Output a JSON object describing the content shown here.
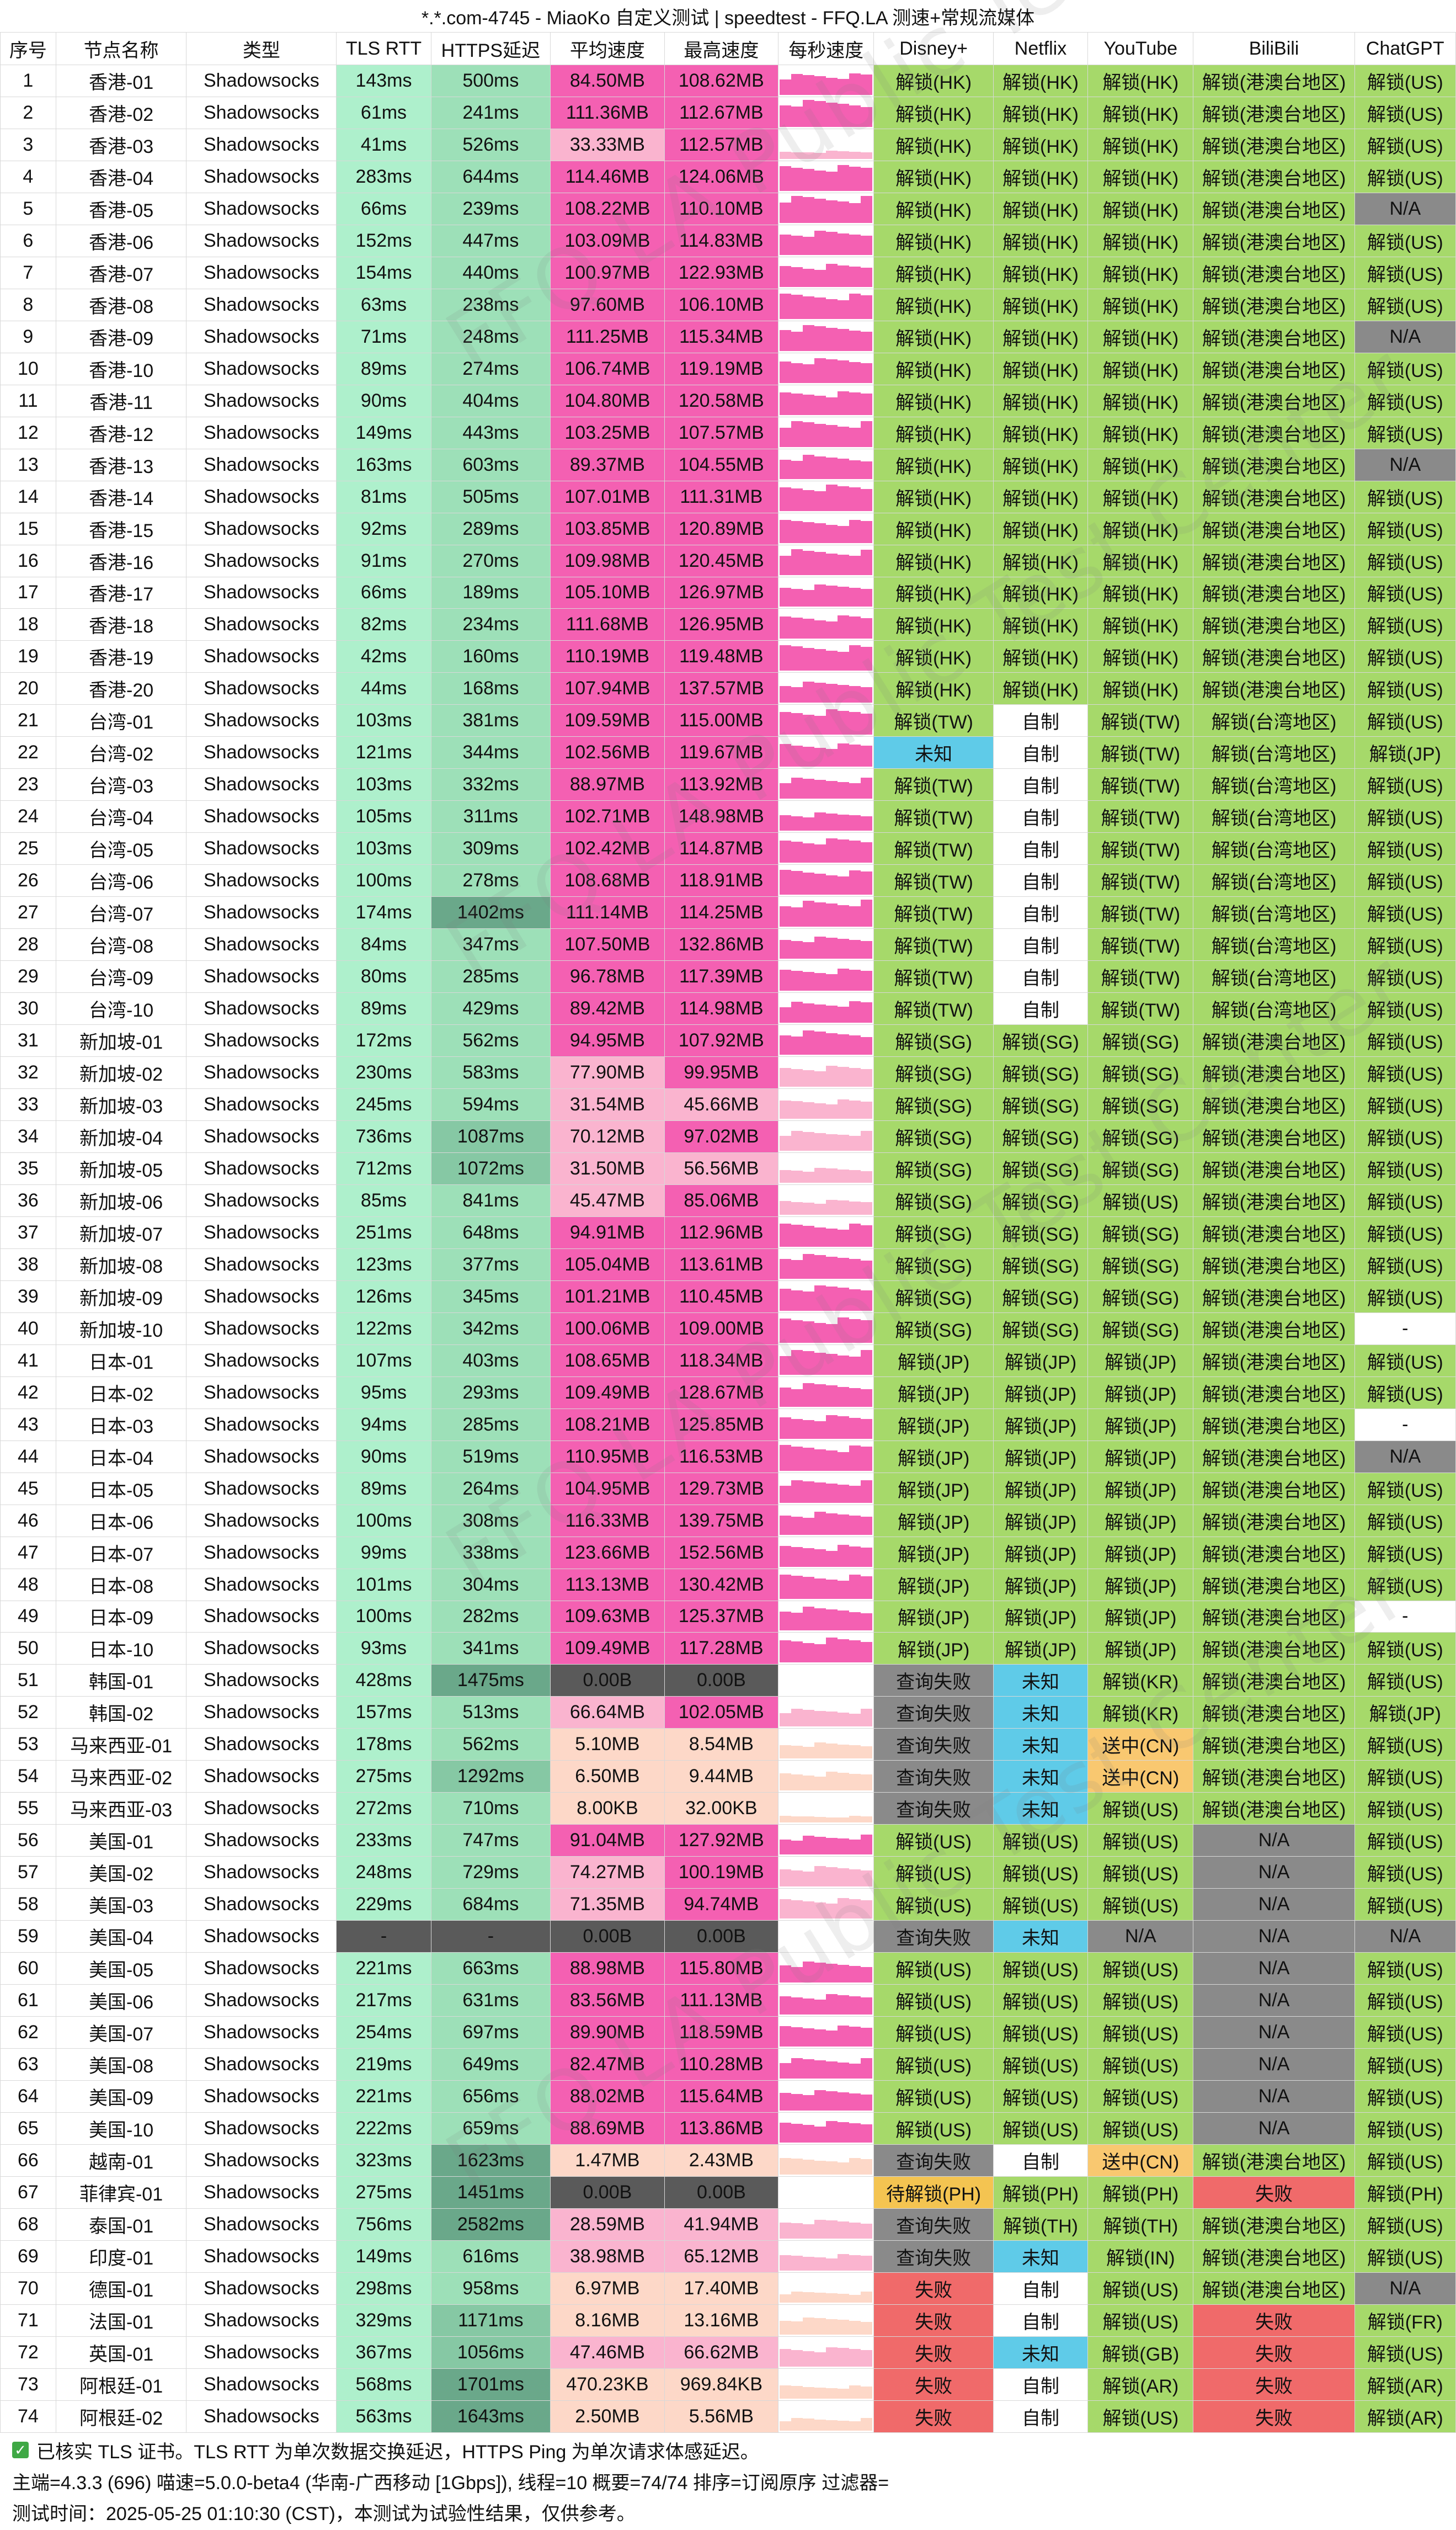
{
  "title": "*.*.com-4745 - MiaoKo 自定义测试 | speedtest - FFQ.LA 测速+常规流媒体",
  "columns": [
    "序号",
    "节点名称",
    "类型",
    "TLS RTT",
    "HTTPS延迟",
    "平均速度",
    "最高速度",
    "每秒速度",
    "Disney+",
    "Netflix",
    "YouTube",
    "BiliBili",
    "ChatGPT"
  ],
  "rows": [
    [
      "1",
      "香港-01",
      "Shadowsocks",
      "143ms",
      "500ms",
      "84.50MB",
      "108.62MB",
      "",
      "解锁(HK)",
      "解锁(HK)",
      "解锁(HK)",
      "解锁(港澳台地区)",
      "解锁(US)"
    ],
    [
      "2",
      "香港-02",
      "Shadowsocks",
      "61ms",
      "241ms",
      "111.36MB",
      "112.67MB",
      "",
      "解锁(HK)",
      "解锁(HK)",
      "解锁(HK)",
      "解锁(港澳台地区)",
      "解锁(US)"
    ],
    [
      "3",
      "香港-03",
      "Shadowsocks",
      "41ms",
      "526ms",
      "33.33MB",
      "112.57MB",
      "",
      "解锁(HK)",
      "解锁(HK)",
      "解锁(HK)",
      "解锁(港澳台地区)",
      "解锁(US)"
    ],
    [
      "4",
      "香港-04",
      "Shadowsocks",
      "283ms",
      "644ms",
      "114.46MB",
      "124.06MB",
      "",
      "解锁(HK)",
      "解锁(HK)",
      "解锁(HK)",
      "解锁(港澳台地区)",
      "解锁(US)"
    ],
    [
      "5",
      "香港-05",
      "Shadowsocks",
      "66ms",
      "239ms",
      "108.22MB",
      "110.10MB",
      "",
      "解锁(HK)",
      "解锁(HK)",
      "解锁(HK)",
      "解锁(港澳台地区)",
      "N/A"
    ],
    [
      "6",
      "香港-06",
      "Shadowsocks",
      "152ms",
      "447ms",
      "103.09MB",
      "114.83MB",
      "",
      "解锁(HK)",
      "解锁(HK)",
      "解锁(HK)",
      "解锁(港澳台地区)",
      "解锁(US)"
    ],
    [
      "7",
      "香港-07",
      "Shadowsocks",
      "154ms",
      "440ms",
      "100.97MB",
      "122.93MB",
      "",
      "解锁(HK)",
      "解锁(HK)",
      "解锁(HK)",
      "解锁(港澳台地区)",
      "解锁(US)"
    ],
    [
      "8",
      "香港-08",
      "Shadowsocks",
      "63ms",
      "238ms",
      "97.60MB",
      "106.10MB",
      "",
      "解锁(HK)",
      "解锁(HK)",
      "解锁(HK)",
      "解锁(港澳台地区)",
      "解锁(US)"
    ],
    [
      "9",
      "香港-09",
      "Shadowsocks",
      "71ms",
      "248ms",
      "111.25MB",
      "115.34MB",
      "",
      "解锁(HK)",
      "解锁(HK)",
      "解锁(HK)",
      "解锁(港澳台地区)",
      "N/A"
    ],
    [
      "10",
      "香港-10",
      "Shadowsocks",
      "89ms",
      "274ms",
      "106.74MB",
      "119.19MB",
      "",
      "解锁(HK)",
      "解锁(HK)",
      "解锁(HK)",
      "解锁(港澳台地区)",
      "解锁(US)"
    ],
    [
      "11",
      "香港-11",
      "Shadowsocks",
      "90ms",
      "404ms",
      "104.80MB",
      "120.58MB",
      "",
      "解锁(HK)",
      "解锁(HK)",
      "解锁(HK)",
      "解锁(港澳台地区)",
      "解锁(US)"
    ],
    [
      "12",
      "香港-12",
      "Shadowsocks",
      "149ms",
      "443ms",
      "103.25MB",
      "107.57MB",
      "",
      "解锁(HK)",
      "解锁(HK)",
      "解锁(HK)",
      "解锁(港澳台地区)",
      "解锁(US)"
    ],
    [
      "13",
      "香港-13",
      "Shadowsocks",
      "163ms",
      "603ms",
      "89.37MB",
      "104.55MB",
      "",
      "解锁(HK)",
      "解锁(HK)",
      "解锁(HK)",
      "解锁(港澳台地区)",
      "N/A"
    ],
    [
      "14",
      "香港-14",
      "Shadowsocks",
      "81ms",
      "505ms",
      "107.01MB",
      "111.31MB",
      "",
      "解锁(HK)",
      "解锁(HK)",
      "解锁(HK)",
      "解锁(港澳台地区)",
      "解锁(US)"
    ],
    [
      "15",
      "香港-15",
      "Shadowsocks",
      "92ms",
      "289ms",
      "103.85MB",
      "120.89MB",
      "",
      "解锁(HK)",
      "解锁(HK)",
      "解锁(HK)",
      "解锁(港澳台地区)",
      "解锁(US)"
    ],
    [
      "16",
      "香港-16",
      "Shadowsocks",
      "91ms",
      "270ms",
      "109.98MB",
      "120.45MB",
      "",
      "解锁(HK)",
      "解锁(HK)",
      "解锁(HK)",
      "解锁(港澳台地区)",
      "解锁(US)"
    ],
    [
      "17",
      "香港-17",
      "Shadowsocks",
      "66ms",
      "189ms",
      "105.10MB",
      "126.97MB",
      "",
      "解锁(HK)",
      "解锁(HK)",
      "解锁(HK)",
      "解锁(港澳台地区)",
      "解锁(US)"
    ],
    [
      "18",
      "香港-18",
      "Shadowsocks",
      "82ms",
      "234ms",
      "111.68MB",
      "126.95MB",
      "",
      "解锁(HK)",
      "解锁(HK)",
      "解锁(HK)",
      "解锁(港澳台地区)",
      "解锁(US)"
    ],
    [
      "19",
      "香港-19",
      "Shadowsocks",
      "42ms",
      "160ms",
      "110.19MB",
      "119.48MB",
      "",
      "解锁(HK)",
      "解锁(HK)",
      "解锁(HK)",
      "解锁(港澳台地区)",
      "解锁(US)"
    ],
    [
      "20",
      "香港-20",
      "Shadowsocks",
      "44ms",
      "168ms",
      "107.94MB",
      "137.57MB",
      "",
      "解锁(HK)",
      "解锁(HK)",
      "解锁(HK)",
      "解锁(港澳台地区)",
      "解锁(US)"
    ],
    [
      "21",
      "台湾-01",
      "Shadowsocks",
      "103ms",
      "381ms",
      "109.59MB",
      "115.00MB",
      "",
      "解锁(TW)",
      "自制",
      "解锁(TW)",
      "解锁(台湾地区)",
      "解锁(US)"
    ],
    [
      "22",
      "台湾-02",
      "Shadowsocks",
      "121ms",
      "344ms",
      "102.56MB",
      "119.67MB",
      "",
      "未知",
      "自制",
      "解锁(TW)",
      "解锁(台湾地区)",
      "解锁(JP)"
    ],
    [
      "23",
      "台湾-03",
      "Shadowsocks",
      "103ms",
      "332ms",
      "88.97MB",
      "113.92MB",
      "",
      "解锁(TW)",
      "自制",
      "解锁(TW)",
      "解锁(台湾地区)",
      "解锁(US)"
    ],
    [
      "24",
      "台湾-04",
      "Shadowsocks",
      "105ms",
      "311ms",
      "102.71MB",
      "148.98MB",
      "",
      "解锁(TW)",
      "自制",
      "解锁(TW)",
      "解锁(台湾地区)",
      "解锁(US)"
    ],
    [
      "25",
      "台湾-05",
      "Shadowsocks",
      "103ms",
      "309ms",
      "102.42MB",
      "114.87MB",
      "",
      "解锁(TW)",
      "自制",
      "解锁(TW)",
      "解锁(台湾地区)",
      "解锁(US)"
    ],
    [
      "26",
      "台湾-06",
      "Shadowsocks",
      "100ms",
      "278ms",
      "108.68MB",
      "118.91MB",
      "",
      "解锁(TW)",
      "自制",
      "解锁(TW)",
      "解锁(台湾地区)",
      "解锁(US)"
    ],
    [
      "27",
      "台湾-07",
      "Shadowsocks",
      "174ms",
      "1402ms",
      "111.14MB",
      "114.25MB",
      "",
      "解锁(TW)",
      "自制",
      "解锁(TW)",
      "解锁(台湾地区)",
      "解锁(US)"
    ],
    [
      "28",
      "台湾-08",
      "Shadowsocks",
      "84ms",
      "347ms",
      "107.50MB",
      "132.86MB",
      "",
      "解锁(TW)",
      "自制",
      "解锁(TW)",
      "解锁(台湾地区)",
      "解锁(US)"
    ],
    [
      "29",
      "台湾-09",
      "Shadowsocks",
      "80ms",
      "285ms",
      "96.78MB",
      "117.39MB",
      "",
      "解锁(TW)",
      "自制",
      "解锁(TW)",
      "解锁(台湾地区)",
      "解锁(US)"
    ],
    [
      "30",
      "台湾-10",
      "Shadowsocks",
      "89ms",
      "429ms",
      "89.42MB",
      "114.98MB",
      "",
      "解锁(TW)",
      "自制",
      "解锁(TW)",
      "解锁(台湾地区)",
      "解锁(US)"
    ],
    [
      "31",
      "新加坡-01",
      "Shadowsocks",
      "172ms",
      "562ms",
      "94.95MB",
      "107.92MB",
      "",
      "解锁(SG)",
      "解锁(SG)",
      "解锁(SG)",
      "解锁(港澳台地区)",
      "解锁(US)"
    ],
    [
      "32",
      "新加坡-02",
      "Shadowsocks",
      "230ms",
      "583ms",
      "77.90MB",
      "99.95MB",
      "",
      "解锁(SG)",
      "解锁(SG)",
      "解锁(SG)",
      "解锁(港澳台地区)",
      "解锁(US)"
    ],
    [
      "33",
      "新加坡-03",
      "Shadowsocks",
      "245ms",
      "594ms",
      "31.54MB",
      "45.66MB",
      "",
      "解锁(SG)",
      "解锁(SG)",
      "解锁(SG)",
      "解锁(港澳台地区)",
      "解锁(US)"
    ],
    [
      "34",
      "新加坡-04",
      "Shadowsocks",
      "736ms",
      "1087ms",
      "70.12MB",
      "97.02MB",
      "",
      "解锁(SG)",
      "解锁(SG)",
      "解锁(SG)",
      "解锁(港澳台地区)",
      "解锁(US)"
    ],
    [
      "35",
      "新加坡-05",
      "Shadowsocks",
      "712ms",
      "1072ms",
      "31.50MB",
      "56.56MB",
      "",
      "解锁(SG)",
      "解锁(SG)",
      "解锁(SG)",
      "解锁(港澳台地区)",
      "解锁(US)"
    ],
    [
      "36",
      "新加坡-06",
      "Shadowsocks",
      "85ms",
      "841ms",
      "45.47MB",
      "85.06MB",
      "",
      "解锁(SG)",
      "解锁(SG)",
      "解锁(US)",
      "解锁(港澳台地区)",
      "解锁(US)"
    ],
    [
      "37",
      "新加坡-07",
      "Shadowsocks",
      "251ms",
      "648ms",
      "94.91MB",
      "112.96MB",
      "",
      "解锁(SG)",
      "解锁(SG)",
      "解锁(SG)",
      "解锁(港澳台地区)",
      "解锁(US)"
    ],
    [
      "38",
      "新加坡-08",
      "Shadowsocks",
      "123ms",
      "377ms",
      "105.04MB",
      "113.61MB",
      "",
      "解锁(SG)",
      "解锁(SG)",
      "解锁(SG)",
      "解锁(港澳台地区)",
      "解锁(US)"
    ],
    [
      "39",
      "新加坡-09",
      "Shadowsocks",
      "126ms",
      "345ms",
      "101.21MB",
      "110.45MB",
      "",
      "解锁(SG)",
      "解锁(SG)",
      "解锁(SG)",
      "解锁(港澳台地区)",
      "解锁(US)"
    ],
    [
      "40",
      "新加坡-10",
      "Shadowsocks",
      "122ms",
      "342ms",
      "100.06MB",
      "109.00MB",
      "",
      "解锁(SG)",
      "解锁(SG)",
      "解锁(SG)",
      "解锁(港澳台地区)",
      "-"
    ],
    [
      "41",
      "日本-01",
      "Shadowsocks",
      "107ms",
      "403ms",
      "108.65MB",
      "118.34MB",
      "",
      "解锁(JP)",
      "解锁(JP)",
      "解锁(JP)",
      "解锁(港澳台地区)",
      "解锁(US)"
    ],
    [
      "42",
      "日本-02",
      "Shadowsocks",
      "95ms",
      "293ms",
      "109.49MB",
      "128.67MB",
      "",
      "解锁(JP)",
      "解锁(JP)",
      "解锁(JP)",
      "解锁(港澳台地区)",
      "解锁(US)"
    ],
    [
      "43",
      "日本-03",
      "Shadowsocks",
      "94ms",
      "285ms",
      "108.21MB",
      "125.85MB",
      "",
      "解锁(JP)",
      "解锁(JP)",
      "解锁(JP)",
      "解锁(港澳台地区)",
      "-"
    ],
    [
      "44",
      "日本-04",
      "Shadowsocks",
      "90ms",
      "519ms",
      "110.95MB",
      "116.53MB",
      "",
      "解锁(JP)",
      "解锁(JP)",
      "解锁(JP)",
      "解锁(港澳台地区)",
      "N/A"
    ],
    [
      "45",
      "日本-05",
      "Shadowsocks",
      "89ms",
      "264ms",
      "104.95MB",
      "129.73MB",
      "",
      "解锁(JP)",
      "解锁(JP)",
      "解锁(JP)",
      "解锁(港澳台地区)",
      "解锁(US)"
    ],
    [
      "46",
      "日本-06",
      "Shadowsocks",
      "100ms",
      "308ms",
      "116.33MB",
      "139.75MB",
      "",
      "解锁(JP)",
      "解锁(JP)",
      "解锁(JP)",
      "解锁(港澳台地区)",
      "解锁(US)"
    ],
    [
      "47",
      "日本-07",
      "Shadowsocks",
      "99ms",
      "338ms",
      "123.66MB",
      "152.56MB",
      "",
      "解锁(JP)",
      "解锁(JP)",
      "解锁(JP)",
      "解锁(港澳台地区)",
      "解锁(US)"
    ],
    [
      "48",
      "日本-08",
      "Shadowsocks",
      "101ms",
      "304ms",
      "113.13MB",
      "130.42MB",
      "",
      "解锁(JP)",
      "解锁(JP)",
      "解锁(JP)",
      "解锁(港澳台地区)",
      "解锁(US)"
    ],
    [
      "49",
      "日本-09",
      "Shadowsocks",
      "100ms",
      "282ms",
      "109.63MB",
      "125.37MB",
      "",
      "解锁(JP)",
      "解锁(JP)",
      "解锁(JP)",
      "解锁(港澳台地区)",
      "-"
    ],
    [
      "50",
      "日本-10",
      "Shadowsocks",
      "93ms",
      "341ms",
      "109.49MB",
      "117.28MB",
      "",
      "解锁(JP)",
      "解锁(JP)",
      "解锁(JP)",
      "解锁(港澳台地区)",
      "解锁(US)"
    ],
    [
      "51",
      "韩国-01",
      "Shadowsocks",
      "428ms",
      "1475ms",
      "0.00B",
      "0.00B",
      "",
      "查询失败",
      "未知",
      "解锁(KR)",
      "解锁(港澳台地区)",
      "解锁(US)"
    ],
    [
      "52",
      "韩国-02",
      "Shadowsocks",
      "157ms",
      "513ms",
      "66.64MB",
      "102.05MB",
      "",
      "查询失败",
      "未知",
      "解锁(KR)",
      "解锁(港澳台地区)",
      "解锁(JP)"
    ],
    [
      "53",
      "马来西亚-01",
      "Shadowsocks",
      "178ms",
      "562ms",
      "5.10MB",
      "8.54MB",
      "",
      "查询失败",
      "未知",
      "送中(CN)",
      "解锁(港澳台地区)",
      "解锁(US)"
    ],
    [
      "54",
      "马来西亚-02",
      "Shadowsocks",
      "275ms",
      "1292ms",
      "6.50MB",
      "9.44MB",
      "",
      "查询失败",
      "未知",
      "送中(CN)",
      "解锁(港澳台地区)",
      "解锁(US)"
    ],
    [
      "55",
      "马来西亚-03",
      "Shadowsocks",
      "272ms",
      "710ms",
      "8.00KB",
      "32.00KB",
      "",
      "查询失败",
      "未知",
      "解锁(US)",
      "解锁(港澳台地区)",
      "解锁(US)"
    ],
    [
      "56",
      "美国-01",
      "Shadowsocks",
      "233ms",
      "747ms",
      "91.04MB",
      "127.92MB",
      "",
      "解锁(US)",
      "解锁(US)",
      "解锁(US)",
      "N/A",
      "解锁(US)"
    ],
    [
      "57",
      "美国-02",
      "Shadowsocks",
      "248ms",
      "729ms",
      "74.27MB",
      "100.19MB",
      "",
      "解锁(US)",
      "解锁(US)",
      "解锁(US)",
      "N/A",
      "解锁(US)"
    ],
    [
      "58",
      "美国-03",
      "Shadowsocks",
      "229ms",
      "684ms",
      "71.35MB",
      "94.74MB",
      "",
      "解锁(US)",
      "解锁(US)",
      "解锁(US)",
      "N/A",
      "解锁(US)"
    ],
    [
      "59",
      "美国-04",
      "Shadowsocks",
      "-",
      "-",
      "0.00B",
      "0.00B",
      "",
      "查询失败",
      "未知",
      "N/A",
      "N/A",
      "N/A"
    ],
    [
      "60",
      "美国-05",
      "Shadowsocks",
      "221ms",
      "663ms",
      "88.98MB",
      "115.80MB",
      "",
      "解锁(US)",
      "解锁(US)",
      "解锁(US)",
      "N/A",
      "解锁(US)"
    ],
    [
      "61",
      "美国-06",
      "Shadowsocks",
      "217ms",
      "631ms",
      "83.56MB",
      "111.13MB",
      "",
      "解锁(US)",
      "解锁(US)",
      "解锁(US)",
      "N/A",
      "解锁(US)"
    ],
    [
      "62",
      "美国-07",
      "Shadowsocks",
      "254ms",
      "697ms",
      "89.90MB",
      "118.59MB",
      "",
      "解锁(US)",
      "解锁(US)",
      "解锁(US)",
      "N/A",
      "解锁(US)"
    ],
    [
      "63",
      "美国-08",
      "Shadowsocks",
      "219ms",
      "649ms",
      "82.47MB",
      "110.28MB",
      "",
      "解锁(US)",
      "解锁(US)",
      "解锁(US)",
      "N/A",
      "解锁(US)"
    ],
    [
      "64",
      "美国-09",
      "Shadowsocks",
      "221ms",
      "656ms",
      "88.02MB",
      "115.64MB",
      "",
      "解锁(US)",
      "解锁(US)",
      "解锁(US)",
      "N/A",
      "解锁(US)"
    ],
    [
      "65",
      "美国-10",
      "Shadowsocks",
      "222ms",
      "659ms",
      "88.69MB",
      "113.86MB",
      "",
      "解锁(US)",
      "解锁(US)",
      "解锁(US)",
      "N/A",
      "解锁(US)"
    ],
    [
      "66",
      "越南-01",
      "Shadowsocks",
      "323ms",
      "1623ms",
      "1.47MB",
      "2.43MB",
      "",
      "查询失败",
      "自制",
      "送中(CN)",
      "解锁(港澳台地区)",
      "解锁(US)"
    ],
    [
      "67",
      "菲律宾-01",
      "Shadowsocks",
      "275ms",
      "1451ms",
      "0.00B",
      "0.00B",
      "",
      "待解锁(PH)",
      "解锁(PH)",
      "解锁(PH)",
      "失败",
      "解锁(PH)"
    ],
    [
      "68",
      "泰国-01",
      "Shadowsocks",
      "756ms",
      "2582ms",
      "28.59MB",
      "41.94MB",
      "",
      "查询失败",
      "解锁(TH)",
      "解锁(TH)",
      "解锁(港澳台地区)",
      "解锁(US)"
    ],
    [
      "69",
      "印度-01",
      "Shadowsocks",
      "149ms",
      "616ms",
      "38.98MB",
      "65.12MB",
      "",
      "查询失败",
      "未知",
      "解锁(IN)",
      "解锁(港澳台地区)",
      "解锁(US)"
    ],
    [
      "70",
      "德国-01",
      "Shadowsocks",
      "298ms",
      "958ms",
      "6.97MB",
      "17.40MB",
      "",
      "失败",
      "自制",
      "解锁(US)",
      "解锁(港澳台地区)",
      "N/A"
    ],
    [
      "71",
      "法国-01",
      "Shadowsocks",
      "329ms",
      "1171ms",
      "8.16MB",
      "13.16MB",
      "",
      "失败",
      "自制",
      "解锁(US)",
      "失败",
      "解锁(FR)"
    ],
    [
      "72",
      "英国-01",
      "Shadowsocks",
      "367ms",
      "1056ms",
      "47.46MB",
      "66.62MB",
      "",
      "失败",
      "未知",
      "解锁(GB)",
      "失败",
      "解锁(US)"
    ],
    [
      "73",
      "阿根廷-01",
      "Shadowsocks",
      "568ms",
      "1701ms",
      "470.23KB",
      "969.84KB",
      "",
      "失败",
      "自制",
      "解锁(AR)",
      "失败",
      "解锁(AR)"
    ],
    [
      "74",
      "阿根廷-02",
      "Shadowsocks",
      "563ms",
      "1643ms",
      "2.50MB",
      "5.56MB",
      "",
      "失败",
      "自制",
      "解锁(US)",
      "失败",
      "解锁(AR)"
    ]
  ],
  "watermark": "FFQ.LA Public Test Center",
  "footer": {
    "line1": "已核实 TLS 证书。TLS RTT 为单次数据交换延迟，HTTPS Ping 为单次请求体感延迟。",
    "line2": "主端=4.3.3 (696) 喵速=5.0.0-beta4 (华南-广西移动 [1Gbps]), 线程=10 概要=74/74 排序=订阅原序 过滤器=",
    "line3": "测试时间：2025-05-25 01:10:30 (CST)，本测试为试验性结果，仅供参考。"
  },
  "colors": {
    "unlock": "#a6d96a",
    "unknown": "#5fcbe8",
    "fail": "#f06a6a",
    "query_fail": "#8a8a8a",
    "na": "#8a8a8a",
    "self_made": "#ffffff",
    "send_cn": "#f9c870",
    "pending": "#f4c451",
    "speed_high": "#f460b2",
    "speed_mid": "#fab4cf",
    "speed_low": "#fdd8c8",
    "speed_zero": "#5a5a5a",
    "tls_low": "#aef0cc",
    "https_low": "#9de0b8",
    "https_high": "#6aa88a"
  }
}
